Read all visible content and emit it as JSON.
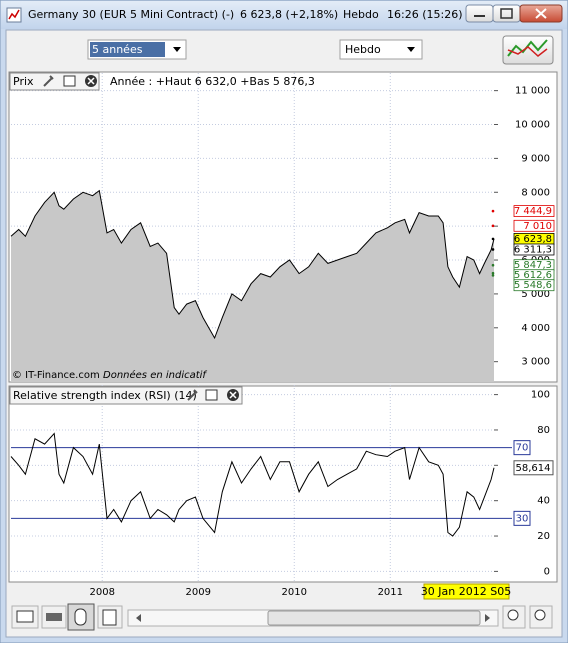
{
  "window": {
    "title": "Germany 30 (EUR 5 Mini Contract) (-)",
    "quote": "6 623,8 (+2,18%)",
    "period": "Hebdo",
    "time": "16:26 (15:26)",
    "range_select": "5 années",
    "period_select": "Hebdo",
    "footer_source": "© IT-Finance.com",
    "footer_note": "Données en indicatif",
    "cursor_label": "30 Jan 2012 S05"
  },
  "chart_data": [
    {
      "type": "area",
      "title": "Prix",
      "annotation": "Année : +Haut 6 632,0 +Bas 5 876,3",
      "color": "#000000",
      "fill": "#c8c8c8",
      "x": [
        2007.05,
        2007.13,
        2007.2,
        2007.3,
        2007.4,
        2007.5,
        2007.55,
        2007.6,
        2007.7,
        2007.8,
        2007.9,
        2007.97,
        2008.05,
        2008.12,
        2008.2,
        2008.3,
        2008.4,
        2008.5,
        2008.58,
        2008.67,
        2008.75,
        2008.8,
        2008.88,
        2008.97,
        2009.05,
        2009.17,
        2009.25,
        2009.35,
        2009.45,
        2009.55,
        2009.65,
        2009.75,
        2009.85,
        2009.95,
        2010.05,
        2010.15,
        2010.25,
        2010.35,
        2010.45,
        2010.55,
        2010.65,
        2010.75,
        2010.85,
        2010.97,
        2011.05,
        2011.15,
        2011.2,
        2011.3,
        2011.4,
        2011.5,
        2011.55,
        2011.6,
        2011.65,
        2011.72,
        2011.8,
        2011.87,
        2011.93,
        2011.98,
        2012.05,
        2012.08
      ],
      "values": [
        6700,
        6900,
        6700,
        7300,
        7700,
        8000,
        7600,
        7500,
        7800,
        8000,
        7900,
        8050,
        6800,
        6900,
        6500,
        6900,
        7100,
        6400,
        6500,
        6200,
        4600,
        4400,
        4700,
        4800,
        4300,
        3700,
        4300,
        5000,
        4800,
        5300,
        5600,
        5500,
        5800,
        6000,
        5600,
        5800,
        6200,
        5900,
        6000,
        6100,
        6200,
        6500,
        6800,
        6950,
        7100,
        7200,
        6800,
        7400,
        7300,
        7300,
        7100,
        5800,
        5500,
        5200,
        6100,
        6000,
        5600,
        5900,
        6300,
        6623.8
      ],
      "xlim": [
        2007.05,
        2012.08
      ],
      "xticks": [
        2008,
        2009,
        2010,
        2011
      ],
      "ylim": [
        2400,
        11550
      ],
      "yticks": [
        {
          "value": 11000,
          "label": "11 000"
        },
        {
          "value": 10000,
          "label": "10 000"
        },
        {
          "value": 9000,
          "label": "9 000"
        },
        {
          "value": 8000,
          "label": "8 000"
        },
        {
          "value": 7000,
          "label": "7 000"
        },
        {
          "value": 6000,
          "label": "6 000"
        },
        {
          "value": 5000,
          "label": "5 000"
        },
        {
          "value": 4000,
          "label": "4 000"
        },
        {
          "value": 3000,
          "label": "3 000"
        }
      ],
      "grid": true,
      "markers": [
        {
          "value": 7444.9,
          "label": "7 444,9",
          "color": "#e00000"
        },
        {
          "value": 7010,
          "label": "7 010",
          "color": "#e00000"
        },
        {
          "value": 6623.8,
          "label": "6 623,8",
          "color": "#000000",
          "highlight": "#ffff00"
        },
        {
          "value": 6311.3,
          "label": "6 311,3",
          "color": "#000000"
        },
        {
          "value": 5847.3,
          "label": "5 847,3",
          "color": "#2a7a2a"
        },
        {
          "value": 5612.6,
          "label": "5 612,6",
          "color": "#2a7a2a"
        },
        {
          "value": 5548.6,
          "label": "5 548,6",
          "color": "#2a7a2a"
        }
      ]
    },
    {
      "type": "line",
      "title": "Relative strength index (RSI) (14)",
      "color": "#000000",
      "x": [
        2007.05,
        2007.13,
        2007.2,
        2007.3,
        2007.4,
        2007.5,
        2007.55,
        2007.6,
        2007.7,
        2007.8,
        2007.9,
        2007.97,
        2008.05,
        2008.12,
        2008.2,
        2008.3,
        2008.4,
        2008.5,
        2008.58,
        2008.67,
        2008.75,
        2008.8,
        2008.88,
        2008.97,
        2009.05,
        2009.17,
        2009.25,
        2009.35,
        2009.45,
        2009.55,
        2009.65,
        2009.75,
        2009.85,
        2009.95,
        2010.05,
        2010.15,
        2010.25,
        2010.35,
        2010.45,
        2010.55,
        2010.65,
        2010.75,
        2010.85,
        2010.97,
        2011.05,
        2011.15,
        2011.2,
        2011.3,
        2011.4,
        2011.5,
        2011.55,
        2011.6,
        2011.65,
        2011.72,
        2011.8,
        2011.87,
        2011.93,
        2011.98,
        2012.05,
        2012.08
      ],
      "values": [
        65,
        60,
        55,
        75,
        72,
        78,
        55,
        50,
        70,
        65,
        55,
        72,
        30,
        35,
        28,
        40,
        45,
        30,
        35,
        32,
        28,
        35,
        40,
        42,
        30,
        22,
        45,
        62,
        50,
        58,
        65,
        52,
        62,
        62,
        45,
        55,
        62,
        48,
        52,
        55,
        58,
        68,
        66,
        65,
        68,
        70,
        52,
        70,
        62,
        60,
        55,
        22,
        20,
        25,
        45,
        42,
        35,
        42,
        52,
        58.614
      ],
      "last_label": "58,614",
      "xlim": [
        2007.05,
        2012.08
      ],
      "xticks": [
        2008,
        2009,
        2010,
        2011
      ],
      "ylim": [
        -6,
        106
      ],
      "yticks": [
        100,
        80,
        60,
        40,
        20,
        0
      ],
      "grid": true,
      "levels": [
        70,
        30
      ],
      "level_color": "#2a3a9a"
    }
  ]
}
